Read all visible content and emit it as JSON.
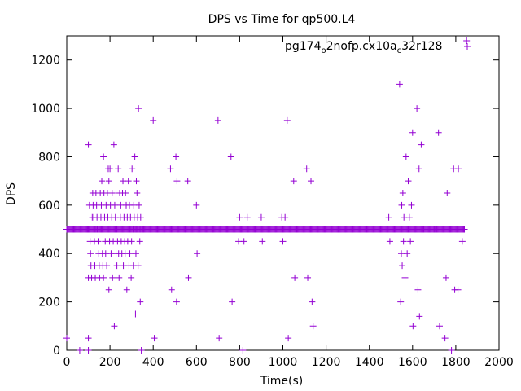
{
  "chart_data": {
    "type": "scatter",
    "title": "DPS vs Time for qp500.L4",
    "xlabel": "Time(s)",
    "ylabel": "DPS",
    "xlim": [
      0,
      2000
    ],
    "ylim": [
      0,
      1300
    ],
    "xticks": [
      0,
      200,
      400,
      600,
      800,
      1000,
      1200,
      1400,
      1600,
      1800,
      2000
    ],
    "yticks": [
      0,
      200,
      400,
      600,
      800,
      1000,
      1200
    ],
    "grid": false,
    "legend_position": "top-right",
    "marker": "plus",
    "series": [
      {
        "name_parts": [
          "pg174",
          "o",
          "2nofp.cx10a",
          "c",
          "32r128"
        ],
        "color": "#9400d3",
        "baseline": {
          "x_start": 0,
          "x_end": 1840,
          "step": 4,
          "y": 500
        },
        "points": [
          [
            0,
            50
          ],
          [
            100,
            850
          ],
          [
            100,
            300
          ],
          [
            100,
            50
          ],
          [
            100,
            0
          ],
          [
            105,
            600
          ],
          [
            105,
            500
          ],
          [
            108,
            450
          ],
          [
            110,
            400
          ],
          [
            112,
            350
          ],
          [
            115,
            300
          ],
          [
            118,
            550
          ],
          [
            120,
            650
          ],
          [
            122,
            600
          ],
          [
            125,
            550
          ],
          [
            128,
            450
          ],
          [
            130,
            350
          ],
          [
            132,
            300
          ],
          [
            135,
            650
          ],
          [
            138,
            600
          ],
          [
            140,
            550
          ],
          [
            142,
            500
          ],
          [
            145,
            450
          ],
          [
            148,
            400
          ],
          [
            150,
            350
          ],
          [
            152,
            300
          ],
          [
            155,
            650
          ],
          [
            158,
            550
          ],
          [
            160,
            600
          ],
          [
            162,
            700
          ],
          [
            165,
            400
          ],
          [
            167,
            350
          ],
          [
            170,
            800
          ],
          [
            170,
            300
          ],
          [
            172,
            650
          ],
          [
            175,
            550
          ],
          [
            178,
            450
          ],
          [
            180,
            400
          ],
          [
            182,
            600
          ],
          [
            185,
            350
          ],
          [
            188,
            650
          ],
          [
            190,
            550
          ],
          [
            192,
            750
          ],
          [
            195,
            700
          ],
          [
            195,
            250
          ],
          [
            198,
            450
          ],
          [
            200,
            750
          ],
          [
            202,
            600
          ],
          [
            205,
            400
          ],
          [
            208,
            550
          ],
          [
            210,
            650
          ],
          [
            212,
            300
          ],
          [
            215,
            450
          ],
          [
            218,
            850
          ],
          [
            220,
            100
          ],
          [
            222,
            600
          ],
          [
            225,
            550
          ],
          [
            228,
            400
          ],
          [
            230,
            500
          ],
          [
            232,
            350
          ],
          [
            235,
            450
          ],
          [
            238,
            750
          ],
          [
            240,
            400
          ],
          [
            242,
            300
          ],
          [
            245,
            650
          ],
          [
            248,
            550
          ],
          [
            250,
            600
          ],
          [
            252,
            450
          ],
          [
            255,
            400
          ],
          [
            258,
            650
          ],
          [
            260,
            700
          ],
          [
            262,
            350
          ],
          [
            265,
            550
          ],
          [
            268,
            450
          ],
          [
            270,
            400
          ],
          [
            272,
            650
          ],
          [
            275,
            600
          ],
          [
            278,
            250
          ],
          [
            280,
            550
          ],
          [
            282,
            450
          ],
          [
            285,
            700
          ],
          [
            288,
            350
          ],
          [
            290,
            600
          ],
          [
            292,
            400
          ],
          [
            295,
            550
          ],
          [
            298,
            300
          ],
          [
            300,
            450
          ],
          [
            302,
            750
          ],
          [
            305,
            500
          ],
          [
            308,
            350
          ],
          [
            310,
            600
          ],
          [
            312,
            550
          ],
          [
            315,
            800
          ],
          [
            318,
            150
          ],
          [
            320,
            400
          ],
          [
            322,
            700
          ],
          [
            325,
            650
          ],
          [
            328,
            550
          ],
          [
            330,
            350
          ],
          [
            332,
            1000
          ],
          [
            335,
            600
          ],
          [
            338,
            450
          ],
          [
            340,
            200
          ],
          [
            342,
            550
          ],
          [
            345,
            0
          ],
          [
            340,
            500
          ],
          [
            60,
            0
          ],
          [
            100,
            500
          ],
          [
            400,
            950
          ],
          [
            405,
            50
          ],
          [
            480,
            750
          ],
          [
            485,
            250
          ],
          [
            505,
            800
          ],
          [
            508,
            200
          ],
          [
            510,
            700
          ],
          [
            560,
            700
          ],
          [
            563,
            300
          ],
          [
            600,
            600
          ],
          [
            603,
            400
          ],
          [
            700,
            950
          ],
          [
            705,
            50
          ],
          [
            760,
            800
          ],
          [
            765,
            200
          ],
          [
            795,
            450
          ],
          [
            800,
            550
          ],
          [
            815,
            0
          ],
          [
            820,
            450
          ],
          [
            835,
            550
          ],
          [
            900,
            550
          ],
          [
            905,
            450
          ],
          [
            995,
            550
          ],
          [
            1000,
            450
          ],
          [
            1010,
            550
          ],
          [
            1020,
            950
          ],
          [
            1025,
            50
          ],
          [
            1050,
            700
          ],
          [
            1055,
            300
          ],
          [
            1110,
            750
          ],
          [
            1115,
            300
          ],
          [
            1130,
            700
          ],
          [
            1135,
            200
          ],
          [
            1140,
            100
          ],
          [
            1490,
            550
          ],
          [
            1495,
            450
          ],
          [
            1540,
            1100
          ],
          [
            1545,
            200
          ],
          [
            1548,
            400
          ],
          [
            1550,
            600
          ],
          [
            1552,
            350
          ],
          [
            1555,
            650
          ],
          [
            1558,
            450
          ],
          [
            1560,
            550
          ],
          [
            1565,
            300
          ],
          [
            1570,
            800
          ],
          [
            1575,
            400
          ],
          [
            1580,
            700
          ],
          [
            1585,
            550
          ],
          [
            1590,
            450
          ],
          [
            1595,
            600
          ],
          [
            1600,
            900
          ],
          [
            1602,
            100
          ],
          [
            1605,
            500
          ],
          [
            1620,
            1000
          ],
          [
            1625,
            250
          ],
          [
            1630,
            750
          ],
          [
            1632,
            140
          ],
          [
            1640,
            850
          ],
          [
            1650,
            500
          ],
          [
            1700,
            500
          ],
          [
            1720,
            900
          ],
          [
            1725,
            100
          ],
          [
            1750,
            50
          ],
          [
            1755,
            300
          ],
          [
            1760,
            650
          ],
          [
            1780,
            0
          ],
          [
            1790,
            750
          ],
          [
            1795,
            250
          ],
          [
            1810,
            250
          ],
          [
            1812,
            750
          ],
          [
            1830,
            450
          ],
          [
            1850,
            1280
          ]
        ]
      }
    ]
  }
}
